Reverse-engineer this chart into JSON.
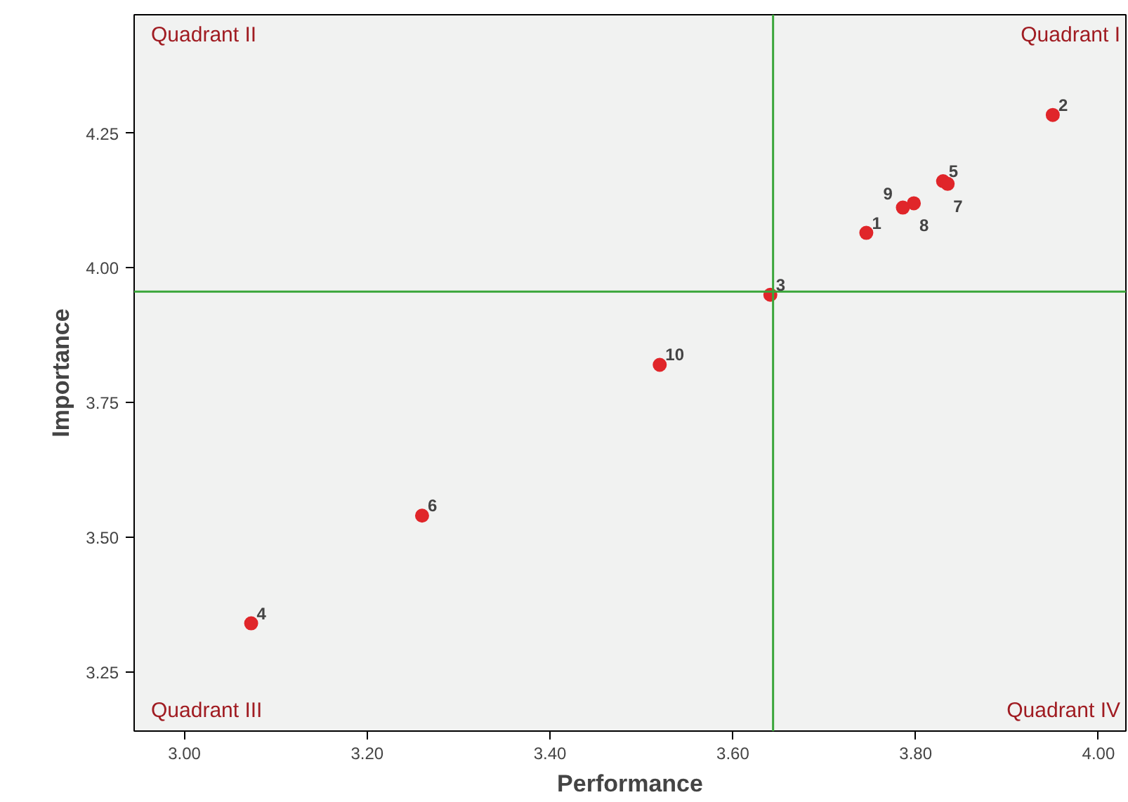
{
  "chart_data": {
    "type": "scatter",
    "xlabel": "Performance",
    "ylabel": "Importance",
    "x": [
      3.746,
      3.95,
      3.641,
      3.073,
      3.83,
      3.26,
      3.835,
      3.798,
      3.786,
      3.52
    ],
    "series": [
      {
        "color": "#e0262a",
        "values": [
          4.065,
          4.284,
          3.95,
          3.34,
          4.161,
          3.54,
          4.156,
          4.12,
          4.112,
          3.82
        ]
      }
    ],
    "xlim": [
      2.945,
      4.03
    ],
    "ylim": [
      3.14,
      4.47
    ],
    "xticks": [
      {
        "value": 3.0,
        "label": "3.00"
      },
      {
        "value": 3.2,
        "label": "3.20"
      },
      {
        "value": 3.4,
        "label": "3.40"
      },
      {
        "value": 3.6,
        "label": "3.60"
      },
      {
        "value": 3.8,
        "label": "3.80"
      },
      {
        "value": 4.0,
        "label": "4.00"
      }
    ],
    "yticks": [
      3.25,
      {
        "value": 3.5,
        "label": "3.50"
      },
      3.75,
      {
        "value": 4.0,
        "label": "4.00"
      },
      4.25
    ],
    "marker": "circle",
    "grid": false,
    "ref_lines": [
      {
        "axis": "x",
        "value": 3.644,
        "color": "#3aa63a"
      },
      {
        "axis": "y",
        "value": 3.956,
        "color": "#3aa63a"
      }
    ],
    "annotations": [
      "Quadrant II",
      "Quadrant I",
      "Quadrant III",
      "Quadrant IV",
      {
        "text": "1",
        "x": 3.746,
        "y": 4.065
      },
      {
        "text": "2",
        "x": 3.95,
        "y": 4.284
      },
      {
        "text": "3",
        "x": 3.641,
        "y": 3.95
      },
      {
        "text": "4",
        "x": 3.073,
        "y": 3.34
      },
      {
        "text": "5",
        "x": 3.83,
        "y": 4.161
      },
      {
        "text": "6",
        "x": 3.26,
        "y": 3.54
      },
      {
        "text": "7",
        "x": 3.835,
        "y": 4.156
      },
      {
        "text": "8",
        "x": 3.798,
        "y": 4.12
      },
      {
        "text": "9",
        "x": 3.786,
        "y": 4.112
      },
      {
        "text": "10",
        "x": 3.52,
        "y": 3.82
      }
    ]
  }
}
